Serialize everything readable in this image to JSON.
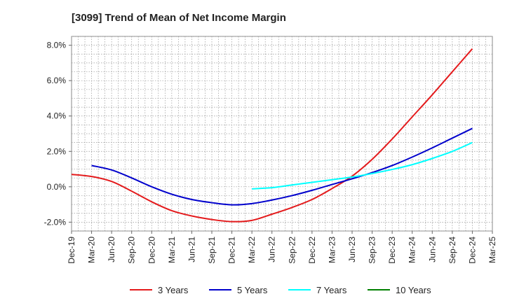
{
  "chart_data": {
    "type": "line",
    "title": "[3099]  Trend of Mean of Net Income Margin",
    "xlabel": "",
    "ylabel": "",
    "categories": [
      "Dec-19",
      "Mar-20",
      "Jun-20",
      "Sep-20",
      "Dec-20",
      "Mar-21",
      "Jun-21",
      "Sep-21",
      "Dec-21",
      "Mar-22",
      "Jun-22",
      "Sep-22",
      "Dec-22",
      "Mar-23",
      "Jun-23",
      "Sep-23",
      "Dec-23",
      "Mar-24",
      "Jun-24",
      "Sep-24",
      "Dec-24",
      "Mar-25"
    ],
    "y_ticks": [
      "8.0%",
      "6.0%",
      "4.0%",
      "2.0%",
      "0.0%",
      "-2.0%"
    ],
    "y_tick_values": [
      8,
      6,
      4,
      2,
      0,
      -2
    ],
    "ylim": [
      -2.5,
      8.5
    ],
    "grid": true,
    "legend_position": "bottom",
    "series": [
      {
        "name": "3 Years",
        "color": "#e41a1c",
        "values": [
          0.7,
          0.58,
          0.3,
          -0.25,
          -0.85,
          -1.35,
          -1.65,
          -1.85,
          -1.97,
          -1.9,
          -1.55,
          -1.17,
          -0.72,
          -0.1,
          0.6,
          1.55,
          2.7,
          3.95,
          5.2,
          6.5,
          7.8,
          null
        ]
      },
      {
        "name": "5 Years",
        "color": "#0000cc",
        "values": [
          null,
          1.2,
          0.95,
          0.5,
          0.0,
          -0.42,
          -0.72,
          -0.9,
          -1.02,
          -0.95,
          -0.75,
          -0.5,
          -0.2,
          0.13,
          0.45,
          0.8,
          1.2,
          1.68,
          2.2,
          2.75,
          3.3,
          null
        ]
      },
      {
        "name": "7 Years",
        "color": "#00ffff",
        "values": [
          null,
          null,
          null,
          null,
          null,
          null,
          null,
          null,
          null,
          -0.12,
          -0.05,
          0.1,
          0.25,
          0.4,
          0.55,
          0.75,
          0.98,
          1.25,
          1.6,
          2.0,
          2.5,
          null
        ]
      },
      {
        "name": "10 Years",
        "color": "#008000",
        "values": [
          null,
          null,
          null,
          null,
          null,
          null,
          null,
          null,
          null,
          null,
          null,
          null,
          null,
          null,
          null,
          null,
          null,
          null,
          null,
          null,
          null,
          null
        ]
      }
    ]
  }
}
